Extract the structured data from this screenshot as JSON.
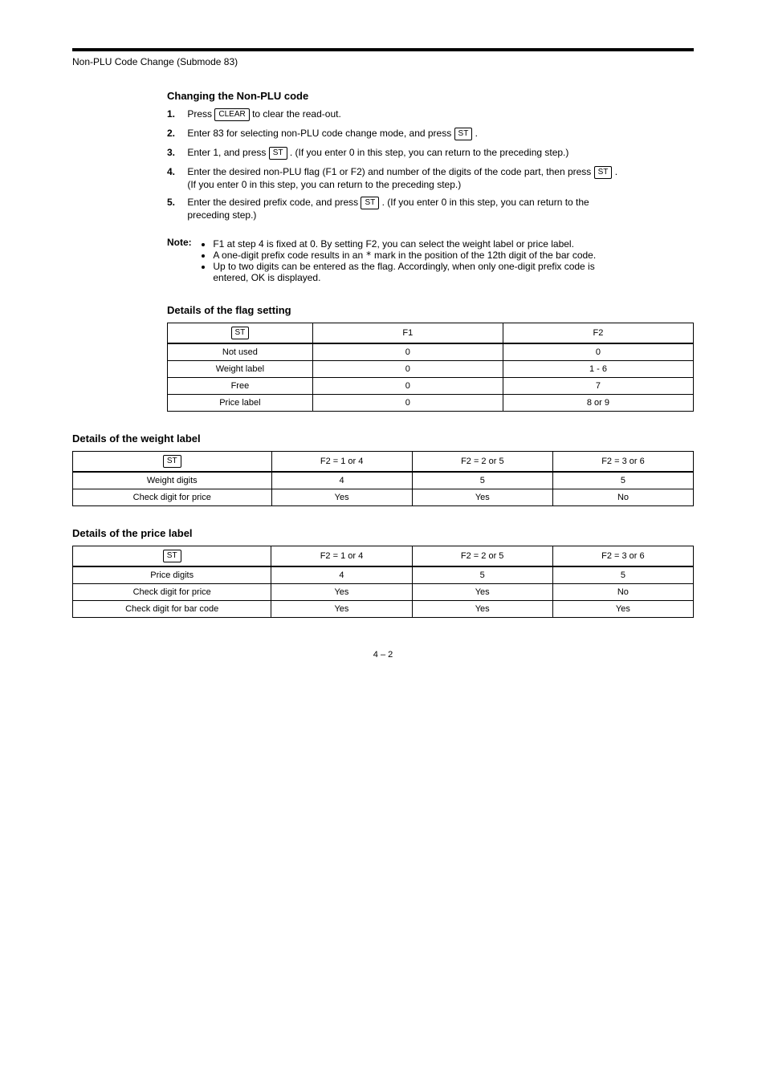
{
  "header": {
    "title": "Non-PLU Code Change (Submode 83)"
  },
  "section": {
    "title": "Changing the Non-PLU code",
    "steps": [
      {
        "num": "1.",
        "text_before": "Press ",
        "key": "CLEAR",
        "text_after": " to clear the read-out."
      },
      {
        "num": "2.",
        "text_before": "Enter 83 for selecting non-PLU code change mode, and press ",
        "key": "ST",
        "text_after": "."
      },
      {
        "num": "3.",
        "text_before": "Enter 1, and press ",
        "key": "ST",
        "text_after": ". (If you enter 0 in this step, you can return to the preceding step.)"
      },
      {
        "num": "4.",
        "text_before": "Enter the desired non-PLU flag (F1 or F2) and number of the digits of the code part, then press ",
        "key": "ST",
        "text_after": ". (If you enter 0 in this step, you can return to the preceding step.)"
      },
      {
        "num": "5.",
        "text_before": "Enter the desired prefix code, and press ",
        "key": "ST",
        "text_after": ". (If you enter 0 in this step, you can return to the preceding step.)"
      }
    ]
  },
  "notes": {
    "label": "Note:",
    "items": [
      "F1 at step 4 is fixed at 0. By setting F2, you can select the weight label or price label.",
      "A one-digit prefix code results in an * mark in the position of the 12th digit of the bar code.",
      "Up to two digits can be entered as the flag. Accordingly, when only one-digit prefix code is entered, OK is displayed."
    ]
  },
  "table1": {
    "caption": "Details of the flag setting",
    "headers": [
      "",
      "F1",
      "F2"
    ],
    "header_key": "ST",
    "rows": [
      [
        "Not used",
        "0",
        "0"
      ],
      [
        "Weight label",
        "0",
        "1 - 6"
      ],
      [
        "Free",
        "0",
        "7"
      ],
      [
        "Price label",
        "0",
        "8 or 9"
      ]
    ]
  },
  "table2": {
    "caption": "Details of the weight label",
    "headers": [
      "",
      "F2 = 1 or 4",
      "F2 = 2 or 5",
      "F2 = 3 or 6"
    ],
    "header_key": "ST",
    "rows": [
      [
        "Weight digits",
        "4",
        "5",
        "5"
      ],
      [
        "Check digit for price",
        "Yes",
        "Yes",
        "No"
      ]
    ]
  },
  "table3": {
    "caption": "Details of the price label",
    "headers": [
      "",
      "F2 = 1 or 4",
      "F2 = 2 or 5",
      "F2 = 3 or 6"
    ],
    "header_key": "ST",
    "rows": [
      [
        "Price digits",
        "4",
        "5",
        "5"
      ],
      [
        "Check digit for price",
        "Yes",
        "Yes",
        "No"
      ],
      [
        "Check digit for bar code",
        "Yes",
        "Yes",
        "Yes"
      ]
    ]
  },
  "page_number": "4 – 2"
}
